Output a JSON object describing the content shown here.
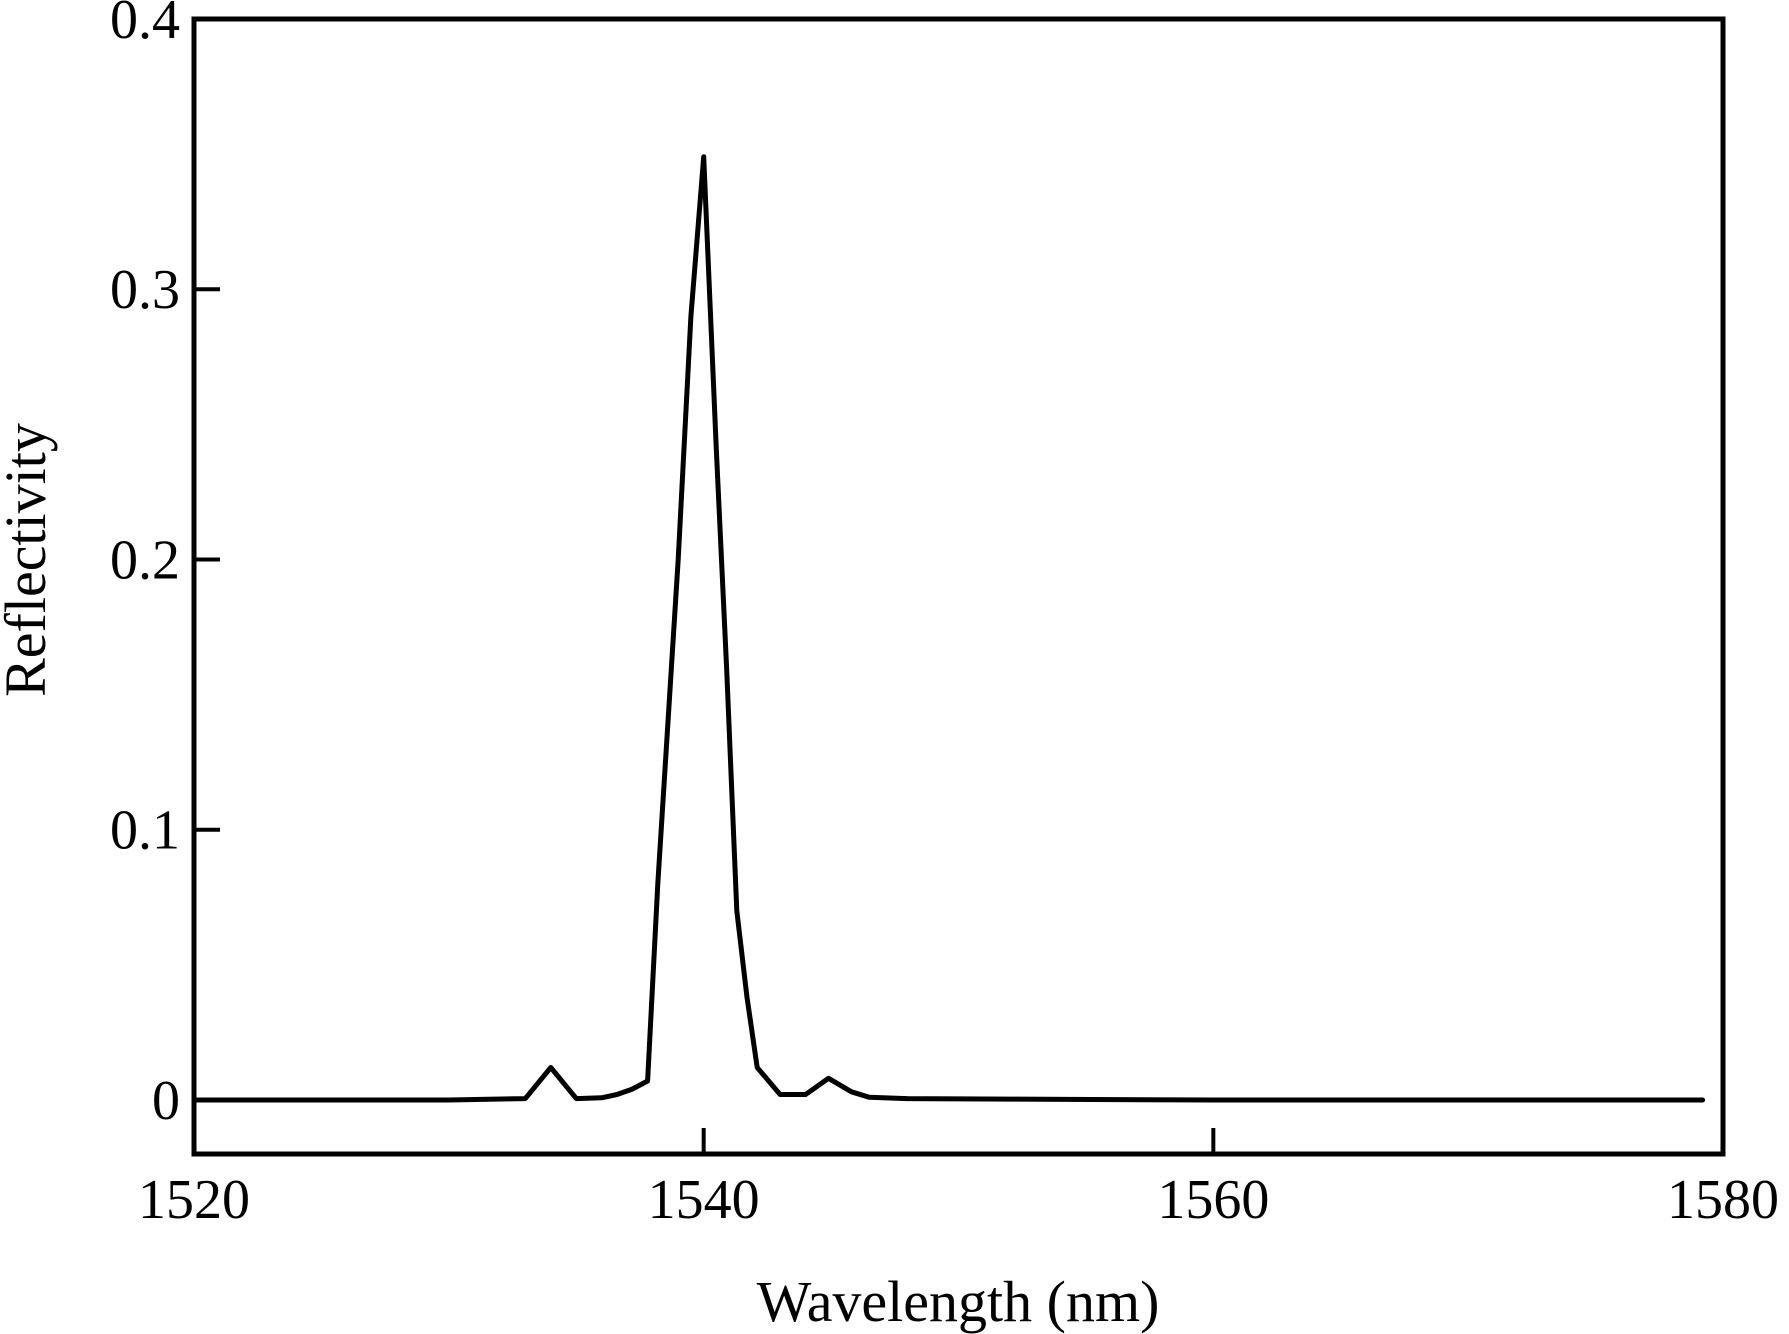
{
  "chart_data": {
    "type": "line",
    "title": "",
    "xlabel": "Wavelength (nm)",
    "ylabel": "Reflectivity",
    "xlim": [
      1520,
      1580
    ],
    "ylim": [
      -0.02,
      0.4
    ],
    "xticks": [
      1520,
      1540,
      1560,
      1580
    ],
    "xtick_labels": [
      "1520",
      "1540",
      "1560",
      "1580"
    ],
    "yticks": [
      0,
      0.1,
      0.2,
      0.3,
      0.4
    ],
    "ytick_labels": [
      "0",
      "0.1",
      "0.2",
      "0.3",
      "0.4"
    ],
    "grid": false,
    "legend": "none",
    "line_color": "#000000",
    "series": [
      {
        "x": [
          1520,
          1525,
          1530,
          1533,
          1534,
          1535,
          1536,
          1536.6,
          1537.2,
          1537.8,
          1538.2,
          1538.6,
          1539.0,
          1539.5,
          1540.0,
          1540.5,
          1540.9,
          1541.3,
          1541.7,
          1542.1,
          1543.0,
          1544.0,
          1544.9,
          1545.8,
          1546.5,
          1548,
          1552,
          1560,
          1570,
          1579.2
        ],
        "y": [
          0,
          0,
          0,
          0.0005,
          0.012,
          0.0005,
          0.0008,
          0.002,
          0.004,
          0.007,
          0.08,
          0.14,
          0.2,
          0.29,
          0.349,
          0.24,
          0.16,
          0.07,
          0.038,
          0.012,
          0.002,
          0.002,
          0.008,
          0.003,
          0.001,
          0.0005,
          0.0003,
          0,
          0,
          0
        ]
      }
    ]
  }
}
